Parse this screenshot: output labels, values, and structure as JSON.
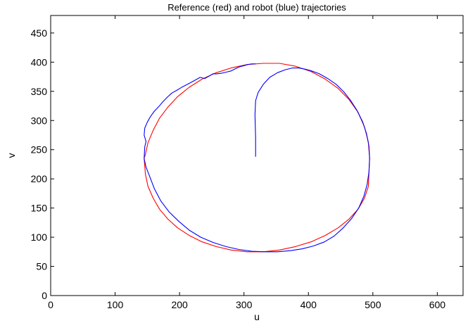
{
  "chart_data": {
    "type": "line",
    "title": "Reference (red) and robot (blue) trajectories",
    "xlabel": "u",
    "ylabel": "v",
    "xlim": [
      0,
      640
    ],
    "ylim": [
      0,
      480
    ],
    "xticks": [
      0,
      100,
      200,
      300,
      400,
      500,
      600
    ],
    "yticks": [
      0,
      50,
      100,
      150,
      200,
      250,
      300,
      350,
      400,
      450
    ],
    "grid": false,
    "legend": "none",
    "series": [
      {
        "color": "#ff0000",
        "x": [
          495,
          493,
          487,
          477,
          463,
          446,
          426,
          404,
          380,
          355,
          330,
          305,
          280,
          257,
          235,
          215,
          197,
          182,
          169,
          159,
          151,
          147,
          145,
          147,
          151,
          159,
          169,
          182,
          197,
          215,
          235,
          257,
          280,
          305,
          330,
          355,
          380,
          404,
          426,
          446,
          463,
          477,
          487,
          493,
          495
        ],
        "y": [
          235,
          263,
          289,
          314,
          336,
          355,
          371,
          384,
          393,
          398,
          398,
          396,
          390,
          382,
          371,
          357,
          341,
          323,
          304,
          283,
          262,
          242,
          235,
          208,
          187,
          167,
          148,
          131,
          116,
          103,
          92,
          84,
          78,
          75,
          75,
          78,
          84,
          92,
          103,
          116,
          131,
          148,
          167,
          187,
          235
        ]
      },
      {
        "color": "#0000ff",
        "x": [
          318,
          318,
          317,
          318,
          322,
          330,
          340,
          352,
          364,
          375,
          385,
          395,
          405,
          417,
          430,
          443,
          455,
          465,
          475,
          484,
          490,
          494,
          495,
          494,
          491,
          486,
          478,
          467,
          454,
          440,
          425,
          408,
          390,
          372,
          352,
          332,
          312,
          292,
          272,
          252,
          233,
          215,
          199,
          184,
          171,
          161,
          153,
          148,
          145,
          146,
          148,
          145,
          146,
          150,
          155,
          161,
          168,
          174,
          181,
          188,
          196,
          205,
          214,
          224,
          232,
          239,
          246,
          252,
          258,
          265,
          273,
          280,
          287,
          293,
          300,
          306,
          312,
          318
        ],
        "y": [
          238,
          270,
          310,
          334,
          348,
          362,
          374,
          382,
          387,
          390,
          390,
          388,
          385,
          380,
          372,
          362,
          349,
          335,
          318,
          298,
          278,
          256,
          235,
          212,
          190,
          170,
          150,
          132,
          116,
          102,
          92,
          85,
          80,
          77,
          75,
          75,
          76,
          79,
          84,
          91,
          100,
          112,
          127,
          143,
          162,
          183,
          206,
          220,
          235,
          255,
          264,
          275,
          287,
          297,
          307,
          316,
          324,
          332,
          340,
          347,
          352,
          358,
          363,
          369,
          374,
          372,
          376,
          380,
          380,
          381,
          383,
          385,
          389,
          392,
          394,
          396,
          397,
          397
        ]
      }
    ]
  }
}
